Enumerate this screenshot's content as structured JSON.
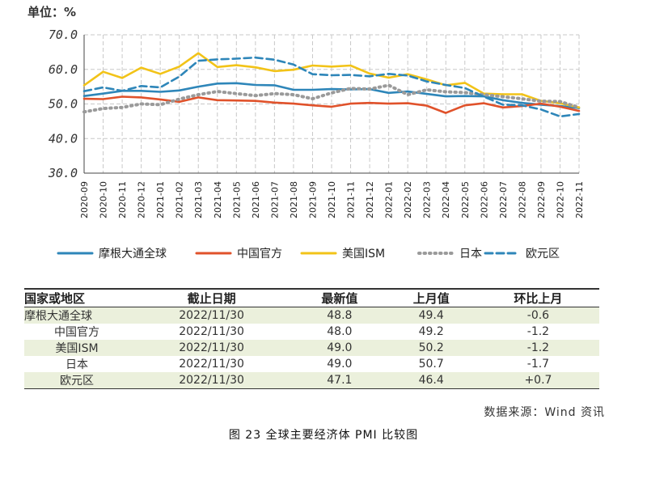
{
  "chart_data": {
    "type": "line",
    "unit_label": "单位：%",
    "ylim": [
      30.0,
      70.0
    ],
    "yticks": [
      "70.0",
      "60.0",
      "50.0",
      "40.0",
      "30.0"
    ],
    "ytick_values": [
      70,
      60,
      50,
      40,
      30
    ],
    "grid": true,
    "legend_position": "bottom",
    "categories": [
      "2020-09",
      "2020-10",
      "2020-11",
      "2020-12",
      "2021-01",
      "2021-02",
      "2021-03",
      "2021-04",
      "2021-05",
      "2021-06",
      "2021-07",
      "2021-08",
      "2021-09",
      "2021-10",
      "2021-11",
      "2021-12",
      "2022-01",
      "2022-02",
      "2022-03",
      "2022-04",
      "2022-05",
      "2022-06",
      "2022-07",
      "2022-08",
      "2022-09",
      "2022-10",
      "2022-11"
    ],
    "series": [
      {
        "name": "摩根大通全球",
        "color": "#2e86b9",
        "style": "solid",
        "values": [
          52.3,
          53.0,
          53.8,
          53.8,
          53.5,
          53.9,
          55.0,
          55.9,
          56.0,
          55.5,
          55.4,
          54.1,
          54.1,
          54.3,
          54.2,
          54.3,
          53.2,
          53.6,
          52.9,
          52.2,
          52.3,
          52.2,
          51.1,
          50.3,
          49.8,
          49.4,
          48.8
        ]
      },
      {
        "name": "中国官方",
        "color": "#e0522b",
        "style": "solid",
        "values": [
          51.5,
          51.4,
          52.1,
          51.9,
          51.3,
          50.6,
          51.9,
          51.1,
          51.0,
          50.9,
          50.4,
          50.1,
          49.6,
          49.2,
          50.1,
          50.3,
          50.1,
          50.2,
          49.5,
          47.4,
          49.6,
          50.2,
          49.0,
          49.4,
          50.1,
          49.2,
          48.0
        ]
      },
      {
        "name": "美国ISM",
        "color": "#f2c318",
        "style": "solid",
        "values": [
          55.4,
          59.3,
          57.5,
          60.5,
          58.7,
          60.8,
          64.7,
          60.7,
          61.2,
          60.6,
          59.5,
          59.9,
          61.1,
          60.8,
          61.1,
          58.8,
          57.6,
          58.6,
          57.1,
          55.4,
          56.1,
          53.0,
          52.8,
          52.8,
          50.9,
          50.2,
          49.0
        ]
      },
      {
        "name": "日本",
        "color": "#9a9a9a",
        "style": "dotted",
        "values": [
          47.7,
          48.7,
          49.0,
          50.0,
          49.8,
          51.4,
          52.7,
          53.6,
          53.0,
          52.4,
          53.0,
          52.7,
          51.5,
          53.2,
          54.5,
          54.3,
          55.4,
          52.7,
          54.1,
          53.5,
          53.3,
          52.7,
          52.1,
          51.5,
          50.8,
          50.7,
          49.0
        ]
      },
      {
        "name": "欧元区",
        "color": "#2e86b9",
        "style": "dashed",
        "values": [
          53.7,
          54.8,
          53.8,
          55.2,
          54.8,
          57.9,
          62.5,
          62.9,
          63.1,
          63.4,
          62.8,
          61.4,
          58.6,
          58.3,
          58.4,
          58.0,
          58.7,
          58.2,
          56.5,
          55.5,
          54.6,
          52.1,
          49.8,
          49.6,
          48.4,
          46.4,
          47.1
        ]
      }
    ]
  },
  "table": {
    "headers": [
      "国家或地区",
      "截止日期",
      "最新值",
      "上月值",
      "环比上月"
    ],
    "rows": [
      [
        "摩根大通全球",
        "2022/11/30",
        "48.8",
        "49.4",
        "-0.6"
      ],
      [
        "中国官方",
        "2022/11/30",
        "48.0",
        "49.2",
        "-1.2"
      ],
      [
        "美国ISM",
        "2022/11/30",
        "49.0",
        "50.2",
        "-1.2"
      ],
      [
        "日本",
        "2022/11/30",
        "49.0",
        "50.7",
        "-1.7"
      ],
      [
        "欧元区",
        "2022/11/30",
        "47.1",
        "46.4",
        "+0.7"
      ]
    ]
  },
  "source": "数据来源：Wind 资讯",
  "caption": "图 23  全球主要经济体 PMI 比较图"
}
